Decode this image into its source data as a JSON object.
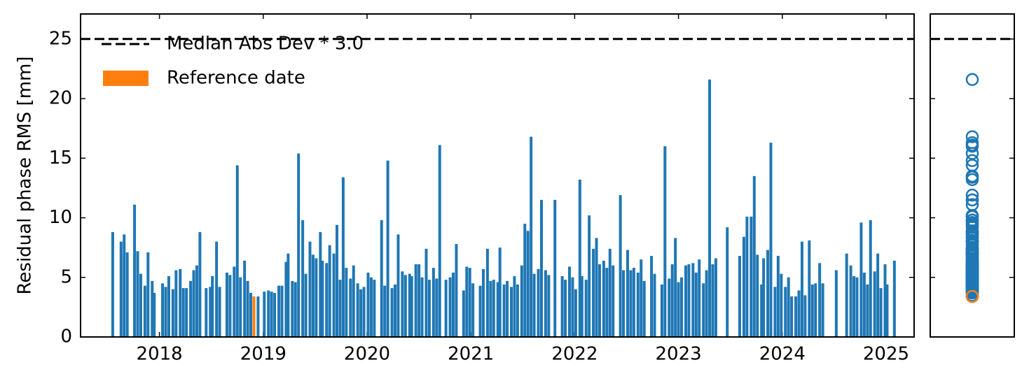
{
  "chart_data": {
    "type": "bar",
    "ylabel": "Residual phase RMS [mm]",
    "xlim": [
      2017.24,
      2025.27
    ],
    "xticks": [
      2018,
      2019,
      2020,
      2021,
      2022,
      2023,
      2024,
      2025
    ],
    "ylim": [
      0,
      27.1
    ],
    "yticks": [
      0,
      5,
      10,
      15,
      20,
      25
    ],
    "legend": "upper left",
    "series": [
      {
        "color": "#1f77b4",
        "x": [
          2017.55,
          2017.63,
          2017.66,
          2017.69,
          2017.76,
          2017.79,
          2017.82,
          2017.86,
          2017.89,
          2017.93,
          2017.95,
          2018.03,
          2018.06,
          2018.09,
          2018.13,
          2018.16,
          2018.2,
          2018.23,
          2018.26,
          2018.3,
          2018.33,
          2018.36,
          2018.39,
          2018.45,
          2018.49,
          2018.51,
          2018.55,
          2018.58,
          2018.65,
          2018.68,
          2018.72,
          2018.75,
          2018.78,
          2018.82,
          2018.85,
          2018.88,
          2018.95,
          2019.01,
          2019.05,
          2019.08,
          2019.11,
          2019.15,
          2019.18,
          2019.22,
          2019.24,
          2019.28,
          2019.31,
          2019.34,
          2019.38,
          2019.41,
          2019.45,
          2019.48,
          2019.51,
          2019.55,
          2019.57,
          2019.61,
          2019.64,
          2019.68,
          2019.71,
          2019.74,
          2019.77,
          2019.8,
          2019.84,
          2019.87,
          2019.91,
          2019.94,
          2019.97,
          2020.01,
          2020.04,
          2020.07,
          2020.14,
          2020.17,
          2020.2,
          2020.24,
          2020.27,
          2020.3,
          2020.34,
          2020.37,
          2020.41,
          2020.43,
          2020.47,
          2020.5,
          2020.53,
          2020.57,
          2020.6,
          2020.64,
          2020.67,
          2020.7,
          2020.76,
          2020.8,
          2020.83,
          2020.86,
          2020.93,
          2020.96,
          2020.99,
          2021.02,
          2021.09,
          2021.12,
          2021.16,
          2021.19,
          2021.22,
          2021.26,
          2021.28,
          2021.32,
          2021.35,
          2021.39,
          2021.42,
          2021.45,
          2021.49,
          2021.52,
          2021.55,
          2021.58,
          2021.61,
          2021.65,
          2021.68,
          2021.72,
          2021.75,
          2021.81,
          2021.88,
          2021.91,
          2021.95,
          2021.98,
          2022.01,
          2022.05,
          2022.07,
          2022.11,
          2022.14,
          2022.18,
          2022.21,
          2022.24,
          2022.28,
          2022.31,
          2022.34,
          2022.37,
          2022.44,
          2022.47,
          2022.51,
          2022.54,
          2022.57,
          2022.61,
          2022.64,
          2022.67,
          2022.74,
          2022.77,
          2022.84,
          2022.87,
          2022.91,
          2022.94,
          2022.97,
          2023.0,
          2023.03,
          2023.07,
          2023.1,
          2023.14,
          2023.17,
          2023.2,
          2023.24,
          2023.27,
          2023.3,
          2023.33,
          2023.36,
          2023.47,
          2023.59,
          2023.63,
          2023.66,
          2023.7,
          2023.73,
          2023.76,
          2023.8,
          2023.82,
          2023.86,
          2023.89,
          2023.93,
          2023.96,
          2023.99,
          2024.03,
          2024.06,
          2024.09,
          2024.13,
          2024.16,
          2024.19,
          2024.22,
          2024.26,
          2024.29,
          2024.32,
          2024.36,
          2024.39,
          2024.52,
          2024.62,
          2024.66,
          2024.69,
          2024.72,
          2024.76,
          2024.79,
          2024.82,
          2024.85,
          2024.89,
          2024.92,
          2024.95,
          2024.99,
          2025.01,
          2025.08
        ],
        "values": [
          8.8,
          8.0,
          8.6,
          7.1,
          11.1,
          7.2,
          5.3,
          4.3,
          7.1,
          4.7,
          3.7,
          4.5,
          4.2,
          5.1,
          4.0,
          5.6,
          5.7,
          4.1,
          4.1,
          4.7,
          5.6,
          6.0,
          8.8,
          4.1,
          4.2,
          5.1,
          8.0,
          4.2,
          5.4,
          5.2,
          5.9,
          14.4,
          5.0,
          6.4,
          4.7,
          3.7,
          3.4,
          3.8,
          3.9,
          3.8,
          3.7,
          4.3,
          4.3,
          6.3,
          7.0,
          4.7,
          4.6,
          15.4,
          9.8,
          5.3,
          8.0,
          6.9,
          6.6,
          8.8,
          6.4,
          6.2,
          7.7,
          7.0,
          9.4,
          4.8,
          13.4,
          5.8,
          4.9,
          6.0,
          4.5,
          4.0,
          4.2,
          5.4,
          5.0,
          4.8,
          9.8,
          4.3,
          14.8,
          4.1,
          4.4,
          8.6,
          5.5,
          5.2,
          5.3,
          5.1,
          6.1,
          6.1,
          5.0,
          7.4,
          4.8,
          5.8,
          4.9,
          16.1,
          4.8,
          5.0,
          5.4,
          7.8,
          3.9,
          5.9,
          5.8,
          4.5,
          4.3,
          5.7,
          7.4,
          4.7,
          4.8,
          4.6,
          7.5,
          4.4,
          4.7,
          4.2,
          5.1,
          4.4,
          6.0,
          9.5,
          8.9,
          16.8,
          5.3,
          5.7,
          11.5,
          5.6,
          5.2,
          11.5,
          5.1,
          4.8,
          5.9,
          5.0,
          4.0,
          13.2,
          5.1,
          4.8,
          10.2,
          7.4,
          8.3,
          6.1,
          6.4,
          5.8,
          7.4,
          6.0,
          11.9,
          5.6,
          7.3,
          5.6,
          5.8,
          5.4,
          6.5,
          4.7,
          6.8,
          5.3,
          4.4,
          16.0,
          4.9,
          6.1,
          8.3,
          4.6,
          5.0,
          6.0,
          6.1,
          6.2,
          5.4,
          6.5,
          4.5,
          5.6,
          21.6,
          6.1,
          6.6,
          9.2,
          6.8,
          8.4,
          10.1,
          10.1,
          13.5,
          6.9,
          4.4,
          6.6,
          7.3,
          16.3,
          4.2,
          6.8,
          5.3,
          4.2,
          5.0,
          3.4,
          3.4,
          3.9,
          8.0,
          3.5,
          8.1,
          4.4,
          4.5,
          6.2,
          4.5,
          5.6,
          7.0,
          6.0,
          5.1,
          5.0,
          9.6,
          5.4,
          4.4,
          9.8,
          5.5,
          7.0,
          4.1,
          6.1,
          4.4,
          6.4
        ]
      },
      {
        "name": "Reference date",
        "color": "#ff7f0e",
        "x": [
          2018.91
        ],
        "values": [
          3.4
        ]
      }
    ],
    "hlines": [
      {
        "name": "Median Abs Dev * 3.0",
        "value": 25,
        "color": "#000000",
        "style": "dashed"
      }
    ]
  }
}
